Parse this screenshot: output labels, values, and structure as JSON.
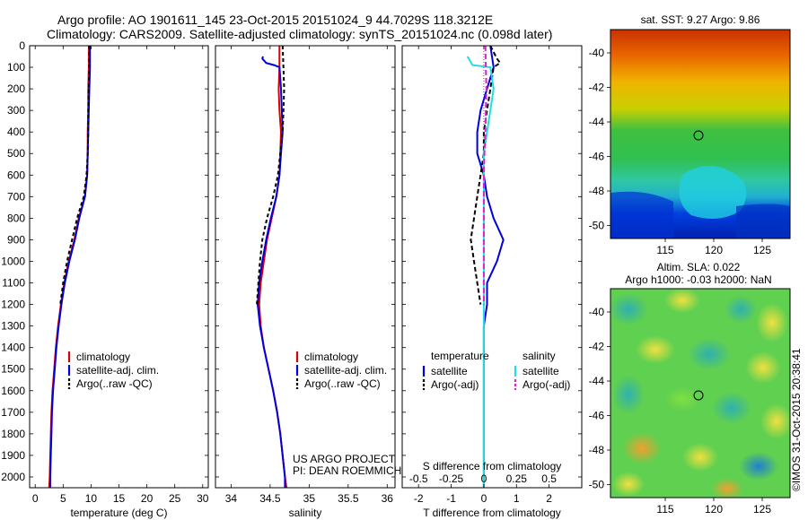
{
  "header": {
    "title_line1": "Argo profile: AO 1901611_145 23-Oct-2015 20151024_9 44.7029S 118.3212E",
    "title_line2": "Climatology: CARS2009. Satellite-adjusted climatology: synTS_20151024.nc (0.098d later)"
  },
  "colors": {
    "red": "#dd0000",
    "blue": "#0000dd",
    "black": "#000000",
    "cyan": "#22dddd",
    "magenta": "#dd22cc"
  },
  "chart_data": [
    {
      "type": "line",
      "xlabel": "temperature (deg C)",
      "xlim": [
        -1,
        31
      ],
      "ylim": [
        2050,
        0
      ],
      "xticks": [
        0,
        5,
        10,
        15,
        20,
        25,
        30
      ],
      "yticks": [
        0,
        100,
        200,
        300,
        400,
        500,
        600,
        700,
        800,
        900,
        1000,
        1100,
        1200,
        1300,
        1400,
        1500,
        1600,
        1700,
        1800,
        1900,
        2000
      ],
      "legend": [
        "climatology",
        "satellite-adj. clim.",
        "Argo(..raw -QC)"
      ],
      "series": [
        {
          "name": "climatology",
          "color": "red",
          "dash": "",
          "points": [
            [
              9.6,
              0
            ],
            [
              9.6,
              100
            ],
            [
              9.5,
              200
            ],
            [
              9.5,
              300
            ],
            [
              9.4,
              400
            ],
            [
              9.4,
              500
            ],
            [
              9.3,
              600
            ],
            [
              8.9,
              700
            ],
            [
              7.8,
              800
            ],
            [
              7.0,
              900
            ],
            [
              6.0,
              1000
            ],
            [
              5.2,
              1100
            ],
            [
              4.6,
              1200
            ],
            [
              4.1,
              1300
            ],
            [
              3.7,
              1400
            ],
            [
              3.4,
              1500
            ],
            [
              3.1,
              1600
            ],
            [
              2.9,
              1700
            ],
            [
              2.8,
              1800
            ],
            [
              2.7,
              1900
            ],
            [
              2.6,
              2000
            ],
            [
              2.5,
              2050
            ]
          ]
        },
        {
          "name": "satellite-adj. clim.",
          "color": "blue",
          "dash": "",
          "points": [
            [
              9.8,
              0
            ],
            [
              9.8,
              100
            ],
            [
              9.7,
              200
            ],
            [
              9.6,
              300
            ],
            [
              9.5,
              400
            ],
            [
              9.4,
              500
            ],
            [
              9.3,
              600
            ],
            [
              8.9,
              700
            ],
            [
              7.9,
              800
            ],
            [
              7.1,
              900
            ],
            [
              6.1,
              1000
            ],
            [
              5.3,
              1100
            ],
            [
              4.7,
              1200
            ],
            [
              4.2,
              1300
            ],
            [
              3.8,
              1400
            ],
            [
              3.5,
              1500
            ],
            [
              3.2,
              1600
            ],
            [
              3.0,
              1700
            ],
            [
              2.9,
              1800
            ],
            [
              2.8,
              1900
            ],
            [
              2.7,
              2000
            ],
            [
              2.7,
              2050
            ]
          ]
        },
        {
          "name": "Argo(..raw -QC)",
          "color": "black",
          "dash": "4,3",
          "points": [
            [
              9.7,
              0
            ],
            [
              9.7,
              100
            ],
            [
              9.6,
              200
            ],
            [
              9.5,
              300
            ],
            [
              9.5,
              400
            ],
            [
              9.4,
              500
            ],
            [
              9.2,
              600
            ],
            [
              8.7,
              700
            ],
            [
              7.5,
              800
            ],
            [
              6.6,
              900
            ],
            [
              5.7,
              1000
            ],
            [
              5.0,
              1100
            ],
            [
              4.5,
              1200
            ]
          ]
        }
      ]
    },
    {
      "type": "line",
      "xlabel": "salinity",
      "xlim": [
        33.8,
        36.1
      ],
      "ylim": [
        2050,
        0
      ],
      "xticks": [
        34,
        34.5,
        35,
        35.5,
        36
      ],
      "xtick_labels": [
        "34",
        "34.5",
        "35",
        "35.5",
        "36"
      ],
      "legend": [
        "climatology",
        "satellite-adj. clim.",
        "Argo(..raw -QC)"
      ],
      "annotation": [
        "US ARGO PROJECT",
        "PI: DEAN ROEMMICH"
      ],
      "series": [
        {
          "name": "climatology",
          "color": "red",
          "dash": "",
          "points": [
            [
              34.62,
              0
            ],
            [
              34.62,
              100
            ],
            [
              34.61,
              200
            ],
            [
              34.62,
              300
            ],
            [
              34.64,
              400
            ],
            [
              34.63,
              500
            ],
            [
              34.62,
              600
            ],
            [
              34.58,
              700
            ],
            [
              34.52,
              800
            ],
            [
              34.46,
              900
            ],
            [
              34.42,
              1000
            ],
            [
              34.38,
              1100
            ],
            [
              34.36,
              1200
            ],
            [
              34.38,
              1300
            ],
            [
              34.42,
              1400
            ],
            [
              34.48,
              1500
            ],
            [
              34.54,
              1600
            ],
            [
              34.59,
              1700
            ],
            [
              34.63,
              1800
            ],
            [
              34.66,
              1900
            ],
            [
              34.69,
              2000
            ],
            [
              34.71,
              2050
            ]
          ]
        },
        {
          "name": "satellite-adj. clim.",
          "color": "blue",
          "dash": "",
          "points": [
            [
              34.41,
              50
            ],
            [
              34.4,
              60
            ],
            [
              34.45,
              80
            ],
            [
              34.55,
              90
            ],
            [
              34.62,
              100
            ],
            [
              34.64,
              200
            ],
            [
              34.65,
              300
            ],
            [
              34.66,
              400
            ],
            [
              34.64,
              500
            ],
            [
              34.62,
              600
            ],
            [
              34.58,
              700
            ],
            [
              34.51,
              800
            ],
            [
              34.45,
              900
            ],
            [
              34.4,
              1000
            ],
            [
              34.36,
              1100
            ],
            [
              34.34,
              1200
            ],
            [
              34.37,
              1300
            ],
            [
              34.42,
              1400
            ],
            [
              34.48,
              1500
            ],
            [
              34.54,
              1600
            ],
            [
              34.59,
              1700
            ],
            [
              34.63,
              1800
            ],
            [
              34.66,
              1900
            ],
            [
              34.69,
              2000
            ],
            [
              34.69,
              2050
            ]
          ]
        },
        {
          "name": "Argo(..raw -QC)",
          "color": "black",
          "dash": "4,3",
          "points": [
            [
              34.66,
              0
            ],
            [
              34.67,
              100
            ],
            [
              34.68,
              200
            ],
            [
              34.67,
              300
            ],
            [
              34.66,
              400
            ],
            [
              34.63,
              500
            ],
            [
              34.6,
              600
            ],
            [
              34.54,
              700
            ],
            [
              34.46,
              800
            ],
            [
              34.4,
              900
            ],
            [
              34.37,
              1000
            ],
            [
              34.35,
              1100
            ],
            [
              34.33,
              1200
            ]
          ]
        }
      ]
    },
    {
      "type": "line",
      "xlabel": "T difference from climatology",
      "xlabel2": "S difference from climatology",
      "xlim": [
        -2.5,
        3
      ],
      "ylim": [
        2050,
        0
      ],
      "xticks": [
        -2,
        -1,
        0,
        1,
        2
      ],
      "xtick_labels": [
        "-2",
        "-1",
        "0",
        "1",
        "2"
      ],
      "xticks2": [
        -0.5,
        -0.25,
        0,
        0.25,
        0.5
      ],
      "xtick2_labels": [
        "-0.5",
        "-0.25",
        "0",
        "0.25",
        "0.5"
      ],
      "legend_groups": {
        "temperature": [
          "satellite",
          "Argo(-adj)"
        ],
        "salinity": [
          "satellite",
          "Argo(-adj)"
        ]
      },
      "series": [
        {
          "name": "temperature satellite",
          "color": "blue",
          "dash": "",
          "points": [
            [
              0.2,
              0
            ],
            [
              0.3,
              100
            ],
            [
              0.1,
              200
            ],
            [
              -0.1,
              300
            ],
            [
              -0.2,
              400
            ],
            [
              -0.2,
              500
            ],
            [
              0,
              600
            ],
            [
              0.1,
              700
            ],
            [
              0.3,
              800
            ],
            [
              0.6,
              900
            ],
            [
              0.4,
              1000
            ],
            [
              0.1,
              1100
            ],
            [
              0.1,
              1200
            ],
            [
              0,
              1300
            ],
            [
              0,
              1400
            ],
            [
              0,
              1500
            ],
            [
              0,
              1600
            ],
            [
              0,
              1700
            ],
            [
              0,
              1800
            ],
            [
              0,
              1900
            ],
            [
              0,
              2050
            ]
          ]
        },
        {
          "name": "temperature Argo(-adj)",
          "color": "black",
          "dash": "5,3",
          "points": [
            [
              0.2,
              0
            ],
            [
              0.4,
              60
            ],
            [
              0.5,
              80
            ],
            [
              0.3,
              100
            ],
            [
              0.2,
              200
            ],
            [
              0.1,
              300
            ],
            [
              0.0,
              400
            ],
            [
              0.0,
              500
            ],
            [
              -0.1,
              600
            ],
            [
              -0.2,
              700
            ],
            [
              -0.3,
              800
            ],
            [
              -0.4,
              900
            ],
            [
              -0.3,
              1000
            ],
            [
              -0.2,
              1100
            ],
            [
              -0.1,
              1200
            ]
          ]
        },
        {
          "name": "salinity satellite",
          "color": "cyan",
          "dash": "",
          "points": [
            [
              -0.5,
              50
            ],
            [
              -0.35,
              90
            ],
            [
              0.2,
              100
            ],
            [
              0.3,
              200
            ],
            [
              0.2,
              300
            ],
            [
              0.1,
              400
            ],
            [
              0,
              500
            ],
            [
              0,
              700
            ],
            [
              0,
              1000
            ],
            [
              0,
              1200
            ],
            [
              0,
              1500
            ],
            [
              0,
              1800
            ],
            [
              0,
              2050
            ]
          ]
        },
        {
          "name": "salinity Argo(-adj)",
          "color": "magenta",
          "dash": "6,3",
          "points": [
            [
              0.05,
              0
            ],
            [
              0.06,
              100
            ],
            [
              0.08,
              200
            ],
            [
              0.06,
              300
            ],
            [
              0.05,
              400
            ],
            [
              0.02,
              500
            ],
            [
              0,
              600
            ],
            [
              0,
              800
            ],
            [
              0,
              1000
            ],
            [
              0,
              1200
            ]
          ]
        }
      ]
    }
  ],
  "map_sst": {
    "title": "sat. SST: 9.27 Argo: 9.86",
    "yticks": [
      "-40",
      "-42",
      "-44",
      "-46",
      "-48",
      "-50"
    ],
    "xticks": [
      "115",
      "120",
      "125"
    ]
  },
  "map_sla": {
    "title_line1": "Altim. SLA: 0.022",
    "title_line2": "Argo h1000: -0.03 h2000: NaN",
    "yticks": [
      "-40",
      "-42",
      "-44",
      "-46",
      "-48",
      "-50"
    ],
    "xticks": [
      "115",
      "120",
      "125"
    ]
  },
  "credit": "©IMOS 31-Oct-2015 20:38:41"
}
